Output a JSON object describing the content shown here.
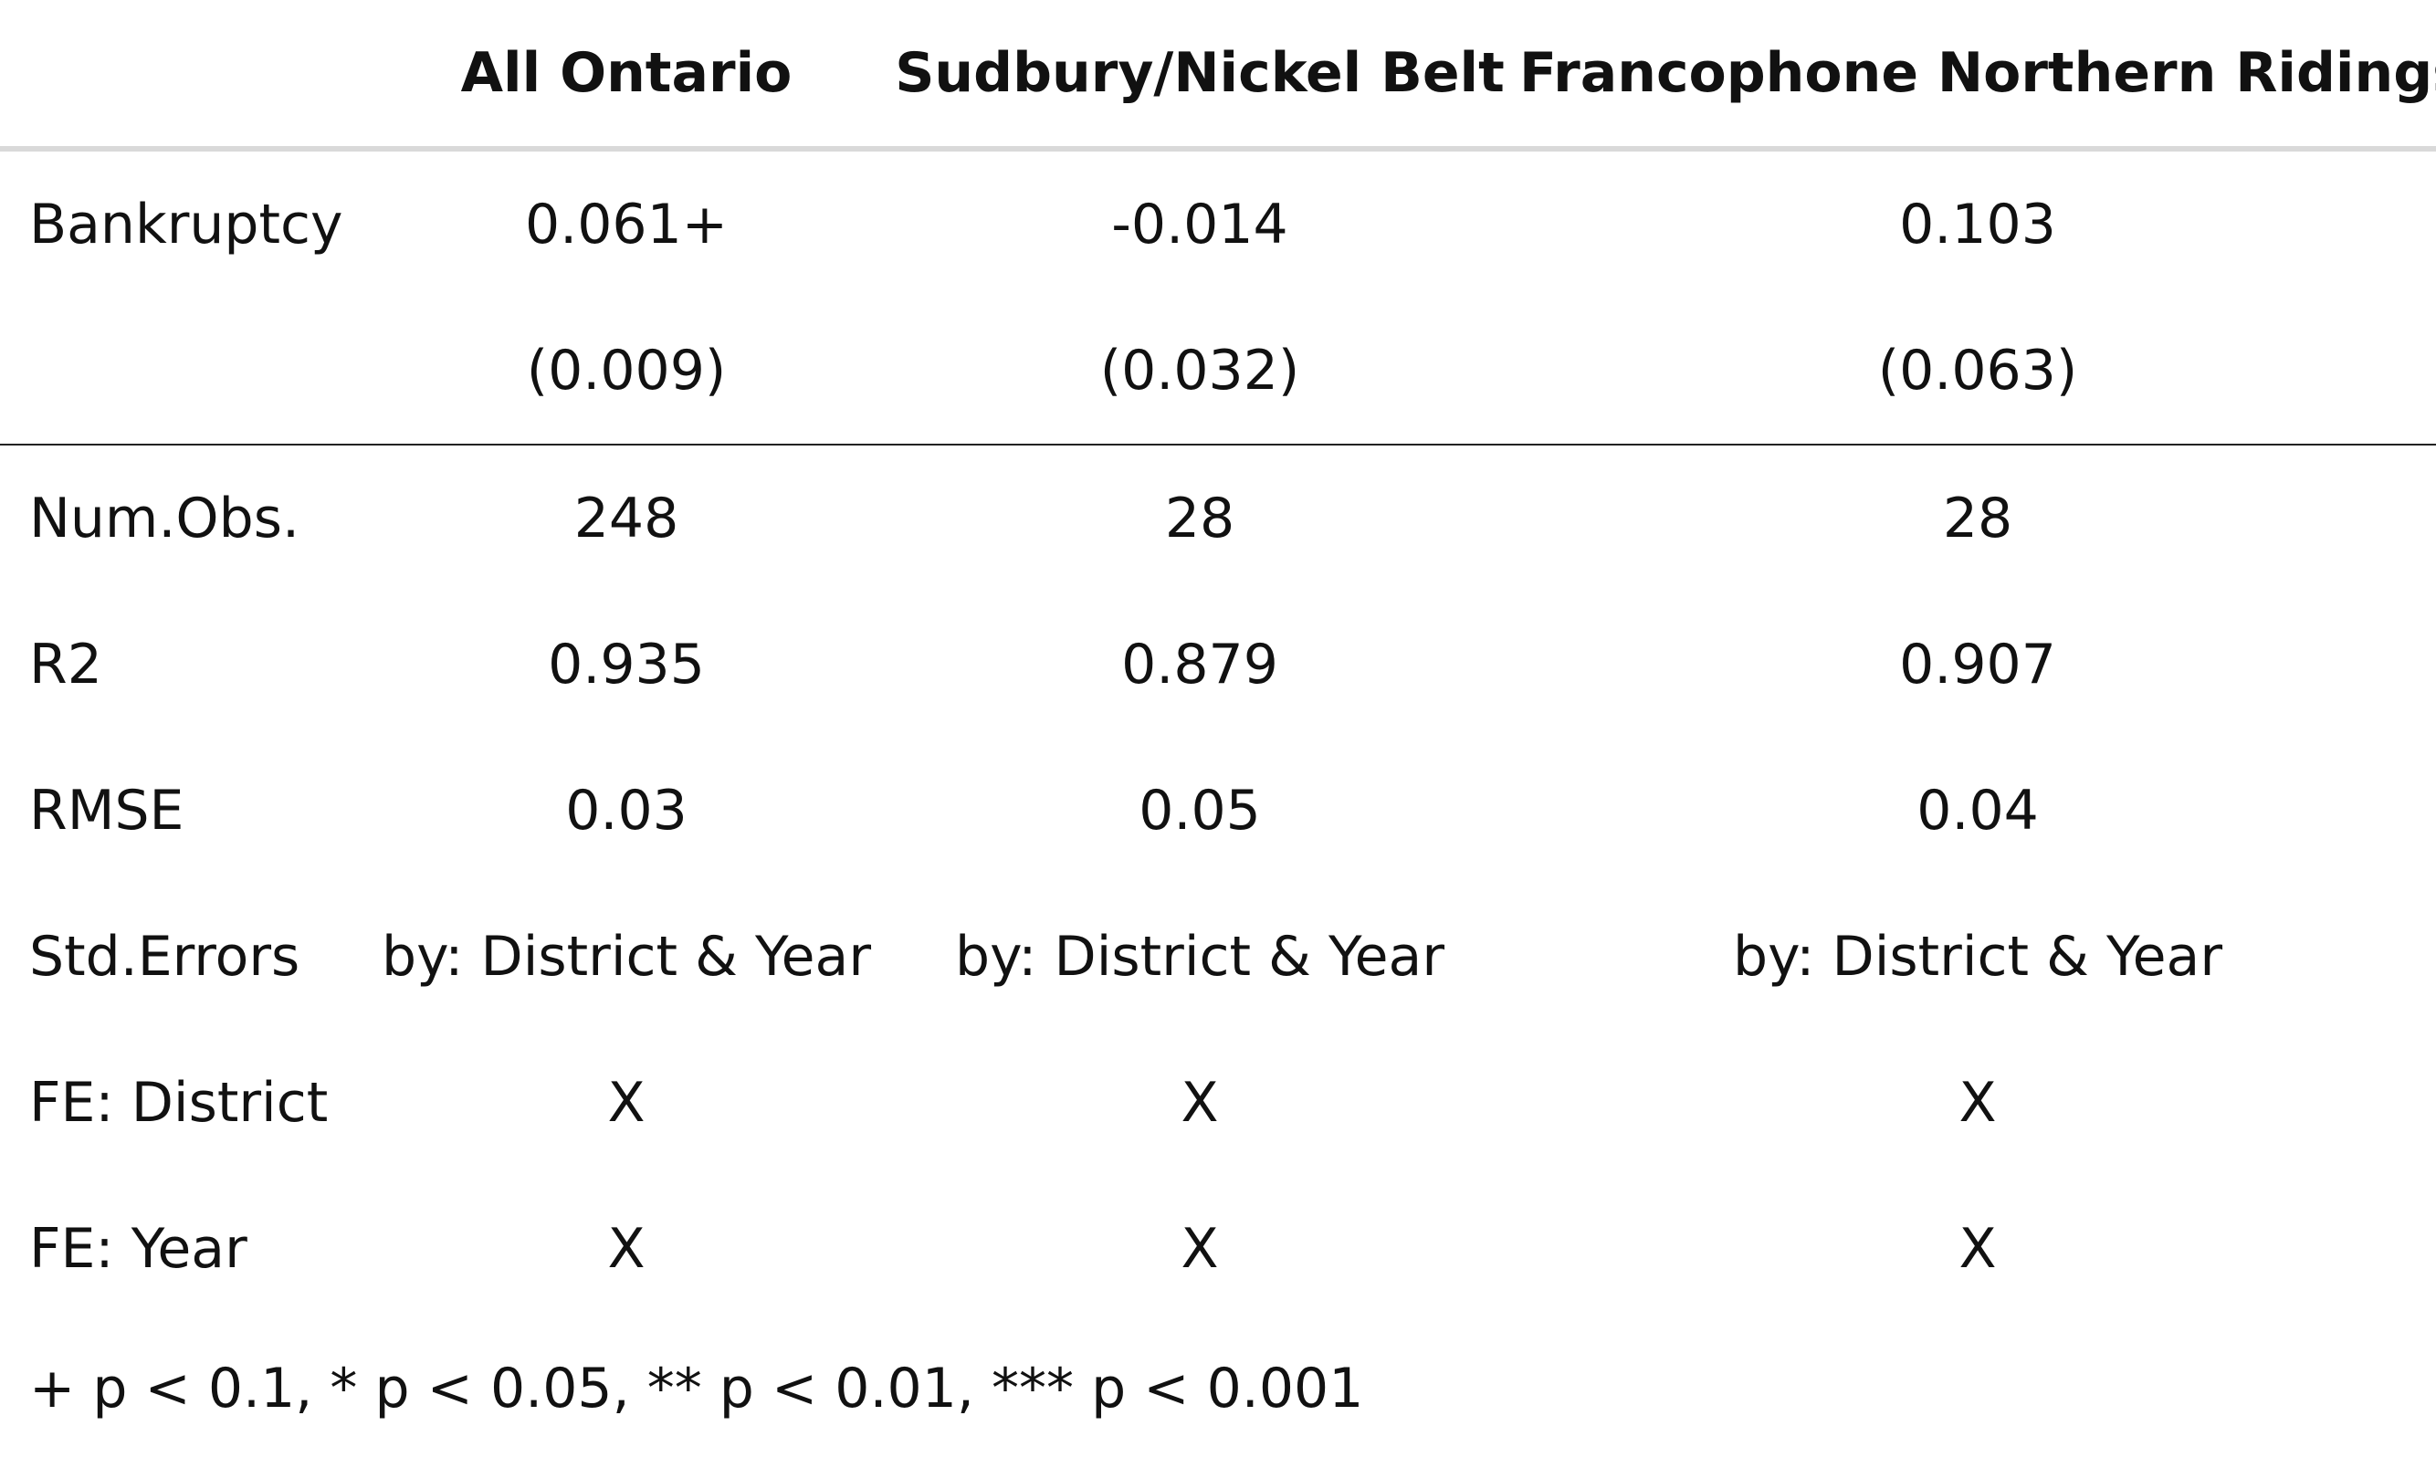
{
  "table": {
    "columns": [
      "",
      "All Ontario",
      "Sudbury/Nickel Belt",
      "Francophone Northern Ridings"
    ],
    "coefficient": {
      "label": "Bankruptcy",
      "estimates": [
        "0.061+",
        "-0.014",
        "0.103"
      ],
      "std_errors": [
        "(0.009)",
        "(0.032)",
        "(0.063)"
      ]
    },
    "stats": [
      {
        "label": "Num.Obs.",
        "values": [
          "248",
          "28",
          "28"
        ]
      },
      {
        "label": "R2",
        "values": [
          "0.935",
          "0.879",
          "0.907"
        ]
      },
      {
        "label": "RMSE",
        "values": [
          "0.03",
          "0.05",
          "0.04"
        ]
      },
      {
        "label": "Std.Errors",
        "values": [
          "by: District & Year",
          "by: District & Year",
          "by: District & Year"
        ]
      },
      {
        "label": "FE: District",
        "values": [
          "X",
          "X",
          "X"
        ]
      },
      {
        "label": "FE: Year",
        "values": [
          "X",
          "X",
          "X"
        ]
      }
    ]
  },
  "footnote": "+ p < 0.1, * p < 0.05, ** p < 0.01, *** p < 0.001"
}
